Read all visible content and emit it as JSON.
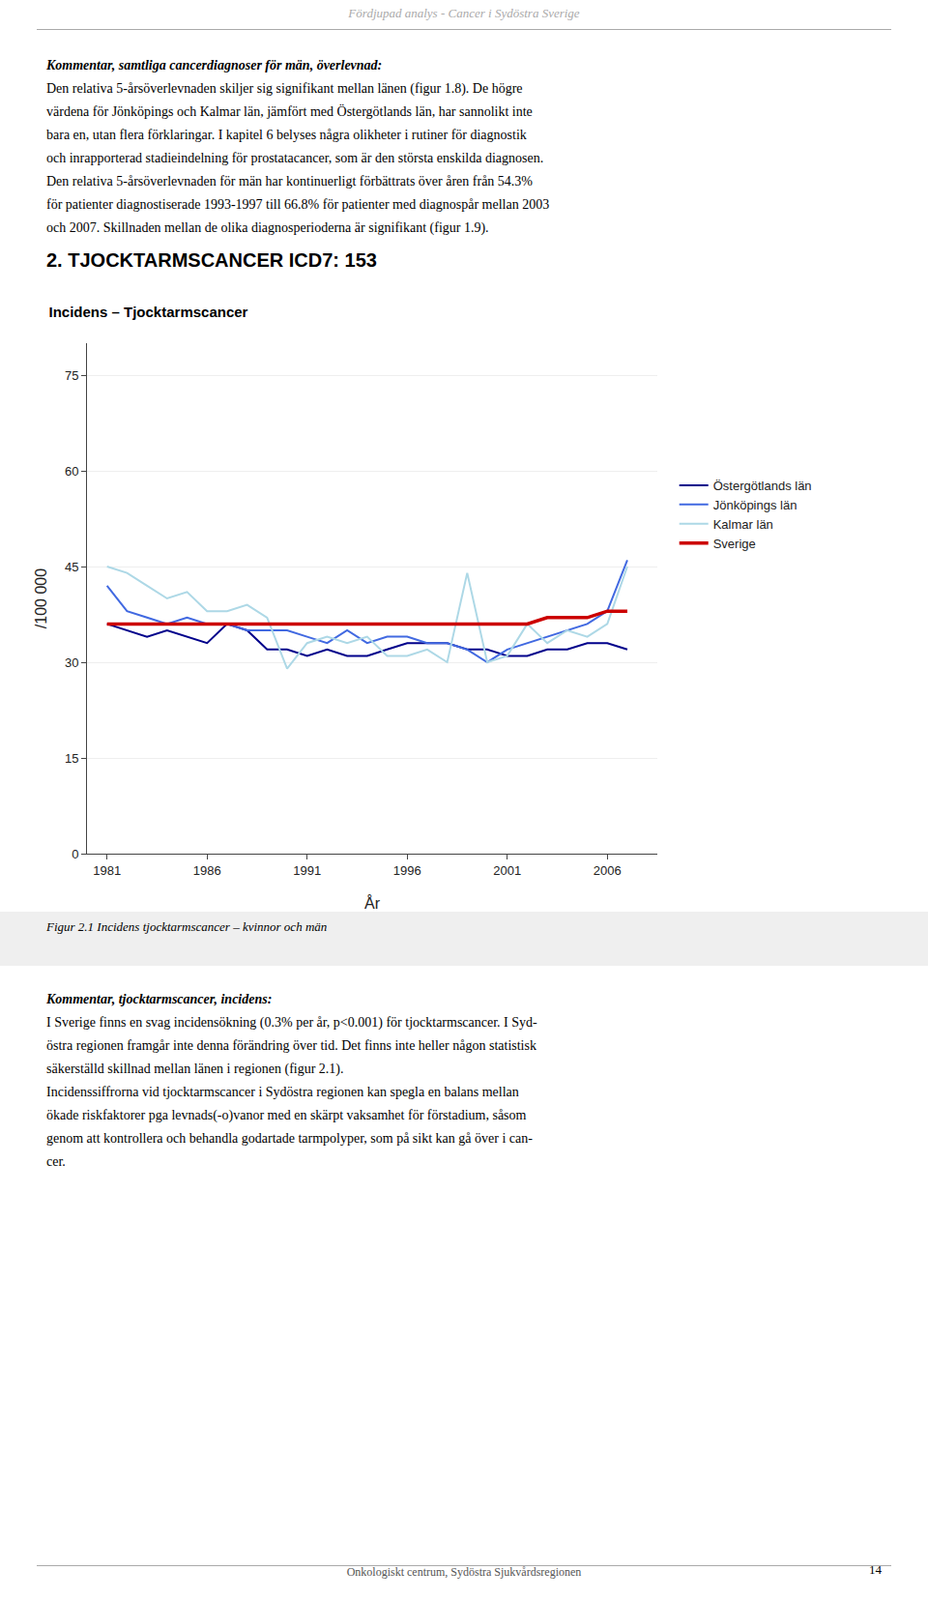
{
  "header": "Fördjupad analys - Cancer i Sydöstra Sverige",
  "footer": "Onkologiskt centrum, Sydöstra Sjukvårdsregionen",
  "page_number": "14",
  "text_blocks": [
    {
      "heading": "Kommentar, samtliga cancerdiagnoser för män, överlevnad:",
      "lines": [
        "Den relativa 5-årsöverlevnaden skiljer sig signifikant mellan länen (figur 1.8). De högre",
        "värdena för Jönköpings och Kalmar län, jämfört med Östergötlands län, har sannolikt inte",
        "bara en, utan flera förklaringar. I kapitel 6 belyses några olikheter i rutiner för diagnostik",
        "och inrapporterad stadieindelning för prostatacancer, som är den största enskilda diagnosen.",
        "Den relativa 5-årsöverlevnaden för män har kontinuerligt förbättrats över åren från 54.3%",
        "för patienter diagnostiserade 1993-1997 till 66.8% för patienter med diagnospår mellan 2003",
        "och 2007. Skillnaden mellan de olika diagnosperioderna är signifikant (figur 1.9)."
      ]
    },
    {
      "heading": "Kommentar, tjocktarmscancer, incidens:",
      "lines": [
        "I Sverige finns en svag incidensökning (0.3% per år, p<0.001) för tjocktarmscancer. I Syd-",
        "östra regionen framgår inte denna förändring över tid. Det finns inte heller någon statistisk",
        "säkerställd skillnad mellan länen i regionen (figur 2.1).",
        "Incidenssiffrorna vid tjocktarmscancer i Sydöstra regionen kan spegla en balans mellan",
        "ökade riskfaktorer pga levnads(-o)vanor med en skärpt vaksamhet för förstadium, såsom",
        "genom att kontrollera och behandla godartade tarmpolyper, som på sikt kan gå över i can-",
        "cer."
      ]
    }
  ],
  "section_heading": "2. TJOCKTARMSCANCER ICD7: 153",
  "figcaption": "Figur 2.1 Incidens tjocktarmscancer – kvinnor och män",
  "chart_data": {
    "type": "line",
    "title": "Incidens – Tjocktarmscancer",
    "x_label": "År",
    "y_label": "/100 000",
    "x": [
      1981,
      1982,
      1983,
      1984,
      1985,
      1986,
      1987,
      1988,
      1989,
      1990,
      1991,
      1992,
      1993,
      1994,
      1995,
      1996,
      1997,
      1998,
      1999,
      2000,
      2001,
      2002,
      2003,
      2004,
      2005,
      2006,
      2007
    ],
    "series": [
      {
        "name": "Östergötlands län",
        "color": "#00008B",
        "values": [
          36,
          35,
          34,
          35,
          34,
          33,
          36,
          35,
          32,
          32,
          31,
          32,
          31,
          31,
          32,
          33,
          33,
          33,
          32,
          32,
          31,
          31,
          32,
          32,
          33,
          33,
          32
        ]
      },
      {
        "name": "Jönköpings län",
        "color": "#4169E1",
        "values": [
          42,
          38,
          37,
          36,
          37,
          36,
          36,
          35,
          35,
          35,
          34,
          33,
          35,
          33,
          34,
          34,
          33,
          33,
          32,
          30,
          32,
          33,
          34,
          35,
          36,
          38,
          46
        ]
      },
      {
        "name": "Kalmar län",
        "color": "#ADD8E6",
        "values": [
          45,
          44,
          42,
          40,
          41,
          38,
          38,
          39,
          37,
          29,
          33,
          34,
          33,
          34,
          31,
          31,
          32,
          30,
          44,
          30,
          31,
          36,
          33,
          35,
          34,
          36,
          45
        ]
      },
      {
        "name": "Sverige",
        "color": "#CC0000",
        "values": [
          36,
          36,
          36,
          36,
          36,
          36,
          36,
          36,
          36,
          36,
          36,
          36,
          36,
          36,
          36,
          36,
          36,
          36,
          36,
          36,
          36,
          36,
          37,
          37,
          37,
          38,
          38
        ]
      }
    ],
    "xlim": [
      1980,
      2008.5
    ],
    "xticks": [
      1981,
      1986,
      1991,
      1996,
      2001,
      2006
    ],
    "ylim": [
      0,
      80
    ],
    "yticks": [
      0,
      15,
      30,
      45,
      60,
      75
    ],
    "grid": true,
    "legend": "right"
  }
}
